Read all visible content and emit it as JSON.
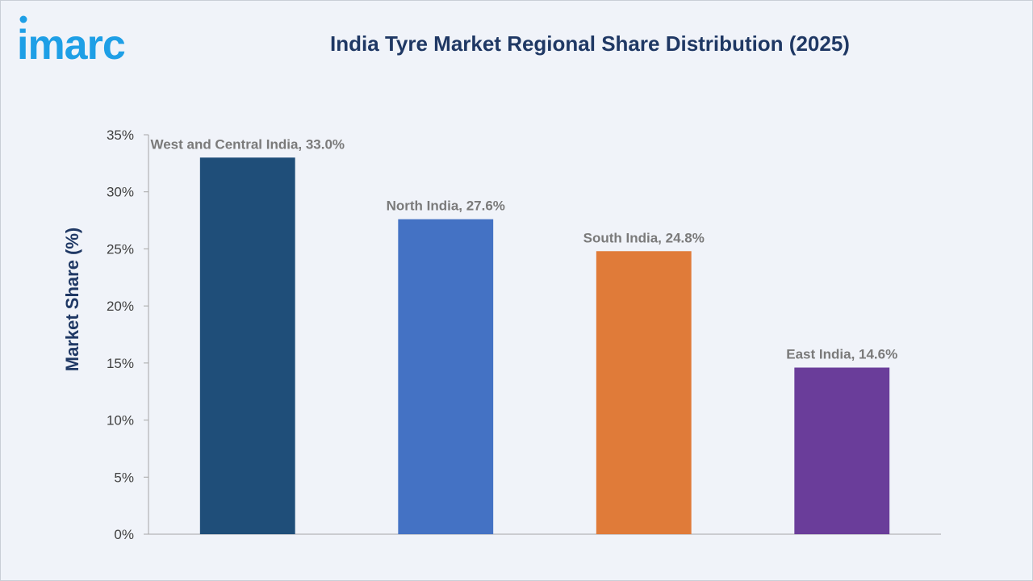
{
  "brand": {
    "logo_text": "imarc",
    "color": "#1e9fe6"
  },
  "chart_data": {
    "type": "bar",
    "title": "India Tyre Market Regional Share Distribution (2025)",
    "xlabel": "",
    "ylabel": "Market Share (%)",
    "ylim": [
      0,
      35
    ],
    "yticks": [
      "0%",
      "5%",
      "10%",
      "15%",
      "20%",
      "25%",
      "30%",
      "35%"
    ],
    "categories": [
      "West and Central India",
      "North India",
      "South India",
      "East India"
    ],
    "values": [
      33.0,
      27.6,
      24.8,
      14.6
    ],
    "data_labels": [
      "West and Central India, 33.0%",
      "North India, 27.6%",
      "South India, 24.8%",
      "East India, 14.6%"
    ],
    "colors": [
      "#1f4e79",
      "#4472c4",
      "#e07b39",
      "#6a3d9a"
    ],
    "grid": false,
    "legend": "none"
  }
}
